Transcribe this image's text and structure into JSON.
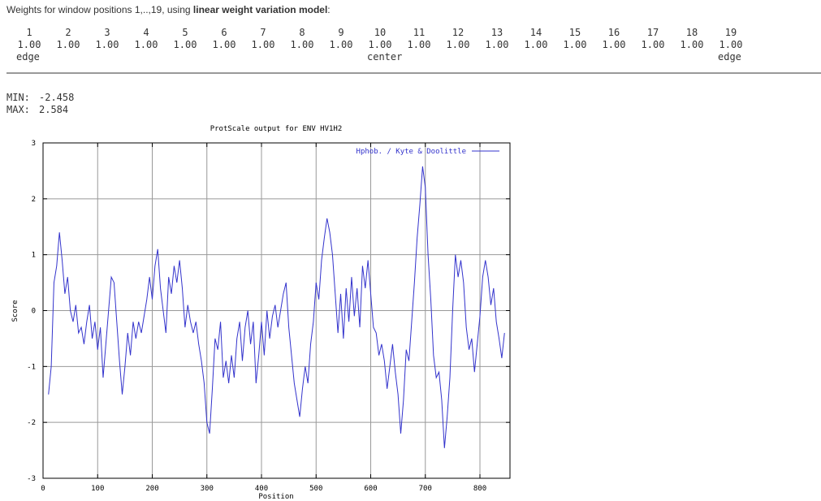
{
  "header": {
    "intro": "Weights for window positions 1,..,19, using ",
    "model": "linear weight variation model",
    "colon": ":"
  },
  "weights": {
    "positions": [
      "1",
      "2",
      "3",
      "4",
      "5",
      "6",
      "7",
      "8",
      "9",
      "10",
      "11",
      "12",
      "13",
      "14",
      "15",
      "16",
      "17",
      "18",
      "19"
    ],
    "weights": [
      "1.00",
      "1.00",
      "1.00",
      "1.00",
      "1.00",
      "1.00",
      "1.00",
      "1.00",
      "1.00",
      "1.00",
      "1.00",
      "1.00",
      "1.00",
      "1.00",
      "1.00",
      "1.00",
      "1.00",
      "1.00",
      "1.00"
    ],
    "markers": [
      "edge",
      null,
      null,
      null,
      null,
      null,
      null,
      null,
      null,
      "center",
      null,
      null,
      null,
      null,
      null,
      null,
      null,
      null,
      "edge"
    ]
  },
  "stats": {
    "min_label": "MIN:",
    "min": "-2.458",
    "max_label": "MAX:",
    "max": "2.584"
  },
  "chart_data": {
    "type": "line",
    "title": "ProtScale output for ENV HV1H2",
    "x_label": "Position",
    "y_label": "Score",
    "xlim": [
      0,
      855
    ],
    "ylim": [
      -3,
      3
    ],
    "xticks": [
      0,
      100,
      200,
      300,
      400,
      500,
      600,
      700,
      800
    ],
    "yticks": [
      -3,
      -2,
      -1,
      0,
      1,
      2,
      3
    ],
    "grid": true,
    "legend": "upper right",
    "x": [
      10,
      15,
      20,
      25,
      30,
      35,
      40,
      45,
      50,
      55,
      60,
      65,
      70,
      75,
      80,
      85,
      90,
      95,
      100,
      105,
      110,
      115,
      120,
      125,
      130,
      135,
      140,
      145,
      150,
      155,
      160,
      165,
      170,
      175,
      180,
      185,
      190,
      195,
      200,
      205,
      210,
      215,
      220,
      225,
      230,
      235,
      240,
      245,
      250,
      255,
      260,
      265,
      270,
      275,
      280,
      285,
      290,
      295,
      300,
      305,
      310,
      315,
      320,
      325,
      330,
      335,
      340,
      345,
      350,
      355,
      360,
      365,
      370,
      375,
      380,
      385,
      390,
      395,
      400,
      405,
      410,
      415,
      420,
      425,
      430,
      435,
      440,
      445,
      450,
      455,
      460,
      465,
      470,
      475,
      480,
      485,
      490,
      495,
      500,
      505,
      510,
      515,
      520,
      525,
      530,
      535,
      540,
      545,
      550,
      555,
      560,
      565,
      570,
      575,
      580,
      585,
      590,
      595,
      600,
      605,
      610,
      615,
      620,
      625,
      630,
      635,
      640,
      645,
      650,
      655,
      660,
      665,
      670,
      675,
      680,
      685,
      690,
      695,
      700,
      705,
      710,
      715,
      720,
      725,
      730,
      735,
      740,
      745,
      750,
      755,
      760,
      765,
      770,
      775,
      780,
      785,
      790,
      795,
      800,
      805,
      810,
      815,
      820,
      825,
      830,
      835,
      840,
      845
    ],
    "series": [
      {
        "name": "Hphob. / Kyte & Doolittle",
        "color": "#3333cc",
        "values": [
          -1.5,
          -1.0,
          0.5,
          0.8,
          1.4,
          0.9,
          0.3,
          0.6,
          0.0,
          -0.2,
          0.1,
          -0.4,
          -0.3,
          -0.6,
          -0.2,
          0.1,
          -0.5,
          -0.2,
          -0.7,
          -0.3,
          -1.2,
          -0.6,
          0.0,
          0.6,
          0.5,
          -0.2,
          -0.9,
          -1.5,
          -1.0,
          -0.4,
          -0.8,
          -0.2,
          -0.5,
          -0.2,
          -0.4,
          -0.1,
          0.2,
          0.6,
          0.2,
          0.8,
          1.1,
          0.4,
          0.0,
          -0.4,
          0.6,
          0.3,
          0.8,
          0.5,
          0.9,
          0.4,
          -0.3,
          0.1,
          -0.2,
          -0.4,
          -0.2,
          -0.6,
          -0.9,
          -1.3,
          -2.0,
          -2.2,
          -1.4,
          -0.5,
          -0.7,
          -0.2,
          -1.2,
          -0.9,
          -1.3,
          -0.8,
          -1.2,
          -0.5,
          -0.2,
          -0.9,
          -0.3,
          0.0,
          -0.6,
          -0.2,
          -1.3,
          -0.8,
          -0.2,
          -0.8,
          0.0,
          -0.5,
          -0.1,
          0.1,
          -0.3,
          0.0,
          0.3,
          0.5,
          -0.3,
          -0.8,
          -1.3,
          -1.6,
          -1.9,
          -1.4,
          -1.0,
          -1.3,
          -0.6,
          -0.2,
          0.5,
          0.2,
          0.9,
          1.3,
          1.65,
          1.4,
          1.0,
          0.3,
          -0.4,
          0.3,
          -0.5,
          0.4,
          -0.2,
          0.6,
          -0.1,
          0.4,
          -0.3,
          0.8,
          0.4,
          0.9,
          0.3,
          -0.3,
          -0.4,
          -0.8,
          -0.6,
          -0.9,
          -1.4,
          -1.0,
          -0.6,
          -1.1,
          -1.5,
          -2.2,
          -1.6,
          -0.7,
          -0.9,
          -0.2,
          0.5,
          1.3,
          1.9,
          2.58,
          2.2,
          1.0,
          0.2,
          -0.8,
          -1.2,
          -1.1,
          -1.6,
          -2.46,
          -1.9,
          -1.2,
          0.0,
          1.0,
          0.6,
          0.9,
          0.5,
          -0.3,
          -0.7,
          -0.5,
          -1.1,
          -0.6,
          -0.1,
          0.6,
          0.9,
          0.6,
          0.1,
          0.4,
          -0.2,
          -0.5,
          -0.85,
          -0.4
        ]
      }
    ]
  }
}
